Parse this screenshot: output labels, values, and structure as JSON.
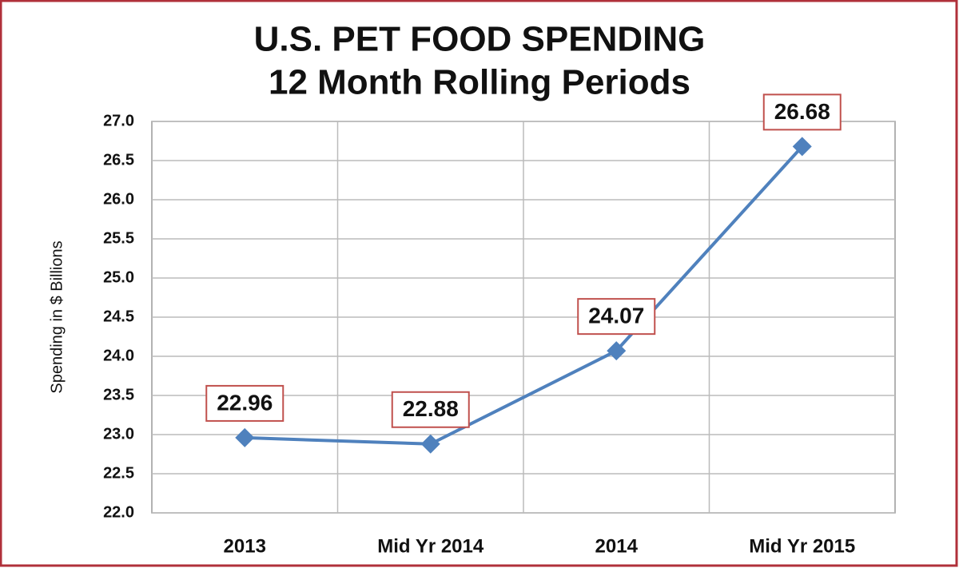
{
  "chart_data": {
    "type": "line",
    "title": "U.S. PET FOOD SPENDING",
    "subtitle": "12 Month Rolling Periods",
    "y_label": "Spending in $ Billions",
    "categories": [
      "2013",
      "Mid Yr 2014",
      "2014",
      "Mid Yr 2015"
    ],
    "values": [
      22.96,
      22.88,
      24.07,
      26.68
    ],
    "color": "#4f81bd",
    "label_border": "#c0504d",
    "ylim": [
      22,
      27
    ],
    "yticks": [
      {
        "value": 22,
        "label": "22.0"
      },
      22.5,
      {
        "value": 23,
        "label": "23.0"
      },
      23.5,
      {
        "value": 24,
        "label": "24.0"
      },
      24.5,
      {
        "value": 25,
        "label": "25.0"
      },
      25.5,
      {
        "value": 26,
        "label": "26.0"
      },
      26.5,
      {
        "value": 27,
        "label": "27.0"
      }
    ],
    "grid": true
  }
}
